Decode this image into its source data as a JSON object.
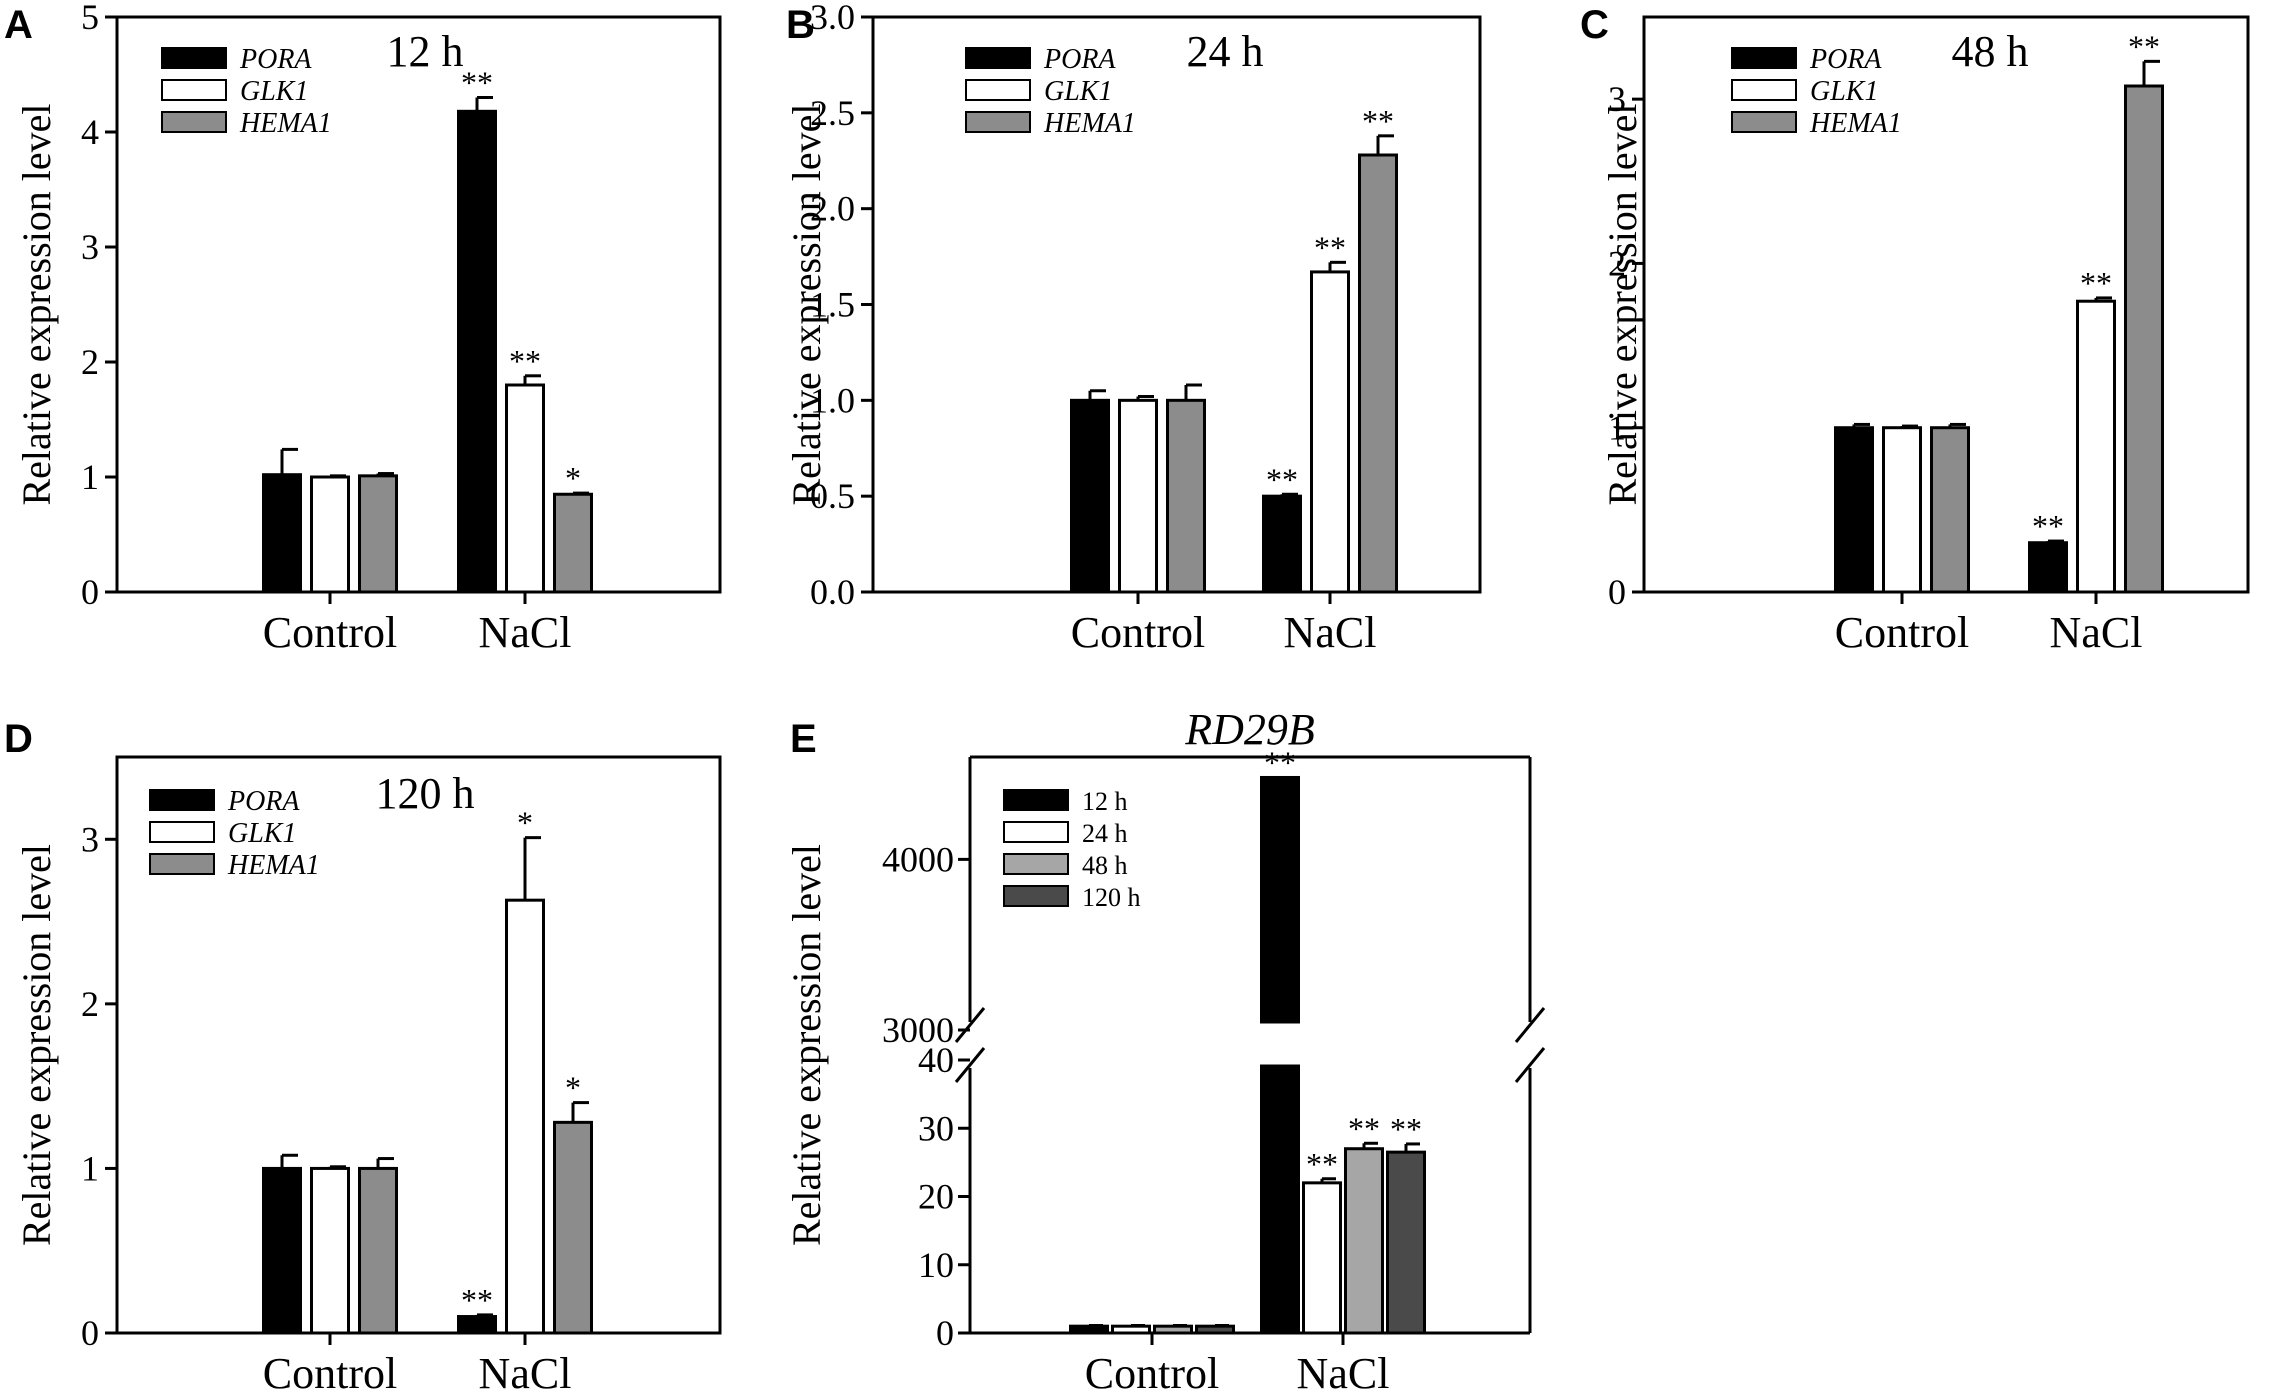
{
  "figure": {
    "colors": {
      "black": "#000000",
      "white": "#ffffff",
      "gray": "#8c8c8c",
      "lightgray": "#a6a6a6",
      "darkgray": "#4a4a4a"
    }
  },
  "chart_data": [
    {
      "panel": "A",
      "type": "bar",
      "title": "12 h",
      "ylabel": "Relative expression level",
      "xlabel": "",
      "ylim": [
        0,
        5
      ],
      "yticks": [
        "0",
        "1",
        "2",
        "3",
        "4",
        "5"
      ],
      "categories": [
        "Control",
        "NaCl"
      ],
      "series": [
        {
          "name": "PORA",
          "values": [
            1.02,
            4.18
          ],
          "errors": [
            0.22,
            0.12
          ],
          "sig": [
            "",
            "**"
          ],
          "color": "#000000"
        },
        {
          "name": "GLK1",
          "values": [
            1.0,
            1.8
          ],
          "errors": [
            0.01,
            0.08
          ],
          "sig": [
            "",
            "**"
          ],
          "color": "#ffffff"
        },
        {
          "name": "HEMA1",
          "values": [
            1.01,
            0.85
          ],
          "errors": [
            0.02,
            0.01
          ],
          "sig": [
            "",
            "*"
          ],
          "color": "#8c8c8c"
        }
      ]
    },
    {
      "panel": "B",
      "type": "bar",
      "title": "24 h",
      "ylabel": "Relative expression level",
      "xlabel": "",
      "ylim": [
        0,
        3.0
      ],
      "yticks": [
        "0.0",
        "0.5",
        "1.0",
        "1.5",
        "2.0",
        "2.5",
        "3.0"
      ],
      "categories": [
        "Control",
        "NaCl"
      ],
      "series": [
        {
          "name": "PORA",
          "values": [
            1.0,
            0.5
          ],
          "errors": [
            0.05,
            0.01
          ],
          "sig": [
            "",
            "**"
          ],
          "color": "#000000"
        },
        {
          "name": "GLK1",
          "values": [
            1.0,
            1.67
          ],
          "errors": [
            0.02,
            0.05
          ],
          "sig": [
            "",
            "**"
          ],
          "color": "#ffffff"
        },
        {
          "name": "HEMA1",
          "values": [
            1.0,
            2.28
          ],
          "errors": [
            0.08,
            0.1
          ],
          "sig": [
            "",
            "**"
          ],
          "color": "#8c8c8c"
        }
      ]
    },
    {
      "panel": "C",
      "type": "bar",
      "title": "48 h",
      "ylabel": "Relative expression level",
      "xlabel": "",
      "ylim": [
        0,
        3.5
      ],
      "yticks": [
        "0",
        "1",
        "2",
        "3"
      ],
      "categories": [
        "Control",
        "NaCl"
      ],
      "series": [
        {
          "name": "PORA",
          "values": [
            1.0,
            0.3
          ],
          "errors": [
            0.02,
            0.01
          ],
          "sig": [
            "",
            "**"
          ],
          "color": "#000000"
        },
        {
          "name": "GLK1",
          "values": [
            1.0,
            1.77
          ],
          "errors": [
            0.01,
            0.02
          ],
          "sig": [
            "",
            "**"
          ],
          "color": "#ffffff"
        },
        {
          "name": "HEMA1",
          "values": [
            1.0,
            3.08
          ],
          "errors": [
            0.02,
            0.15
          ],
          "sig": [
            "",
            "**"
          ],
          "color": "#8c8c8c"
        }
      ]
    },
    {
      "panel": "D",
      "type": "bar",
      "title": "120 h",
      "ylabel": "Relative expression level",
      "xlabel": "",
      "ylim": [
        0,
        3.5
      ],
      "yticks": [
        "0",
        "1",
        "2",
        "3"
      ],
      "categories": [
        "Control",
        "NaCl"
      ],
      "series": [
        {
          "name": "PORA",
          "values": [
            1.0,
            0.1
          ],
          "errors": [
            0.08,
            0.01
          ],
          "sig": [
            "",
            "**"
          ],
          "color": "#000000"
        },
        {
          "name": "GLK1",
          "values": [
            1.0,
            2.63
          ],
          "errors": [
            0.01,
            0.38
          ],
          "sig": [
            "",
            "*"
          ],
          "color": "#ffffff"
        },
        {
          "name": "HEMA1",
          "values": [
            1.0,
            1.28
          ],
          "errors": [
            0.06,
            0.12
          ],
          "sig": [
            "",
            "*"
          ],
          "color": "#8c8c8c"
        }
      ]
    },
    {
      "panel": "E",
      "type": "bar",
      "title": "RD29B",
      "ylabel": "Relative expression level",
      "xlabel": "",
      "broken_axis": {
        "lower": [
          0,
          40
        ],
        "upper": [
          3000,
          4600
        ]
      },
      "yticks_lower": [
        "0",
        "10",
        "20",
        "30",
        "40"
      ],
      "yticks_upper": [
        "3000",
        "4000"
      ],
      "categories": [
        "Control",
        "NaCl"
      ],
      "series": [
        {
          "name": "12 h",
          "values": [
            1.0,
            4480
          ],
          "errors": [
            0.1,
            10
          ],
          "sig": [
            "",
            "**"
          ],
          "color": "#000000"
        },
        {
          "name": "24 h",
          "values": [
            1.0,
            22.0
          ],
          "errors": [
            0.1,
            0.6
          ],
          "sig": [
            "",
            "**"
          ],
          "color": "#ffffff"
        },
        {
          "name": "48 h",
          "values": [
            1.0,
            27.0
          ],
          "errors": [
            0.1,
            0.8
          ],
          "sig": [
            "",
            "**"
          ],
          "color": "#a6a6a6"
        },
        {
          "name": "120 h",
          "values": [
            1.0,
            26.5
          ],
          "errors": [
            0.1,
            1.2
          ],
          "sig": [
            "",
            "**"
          ],
          "color": "#4a4a4a"
        }
      ]
    }
  ]
}
